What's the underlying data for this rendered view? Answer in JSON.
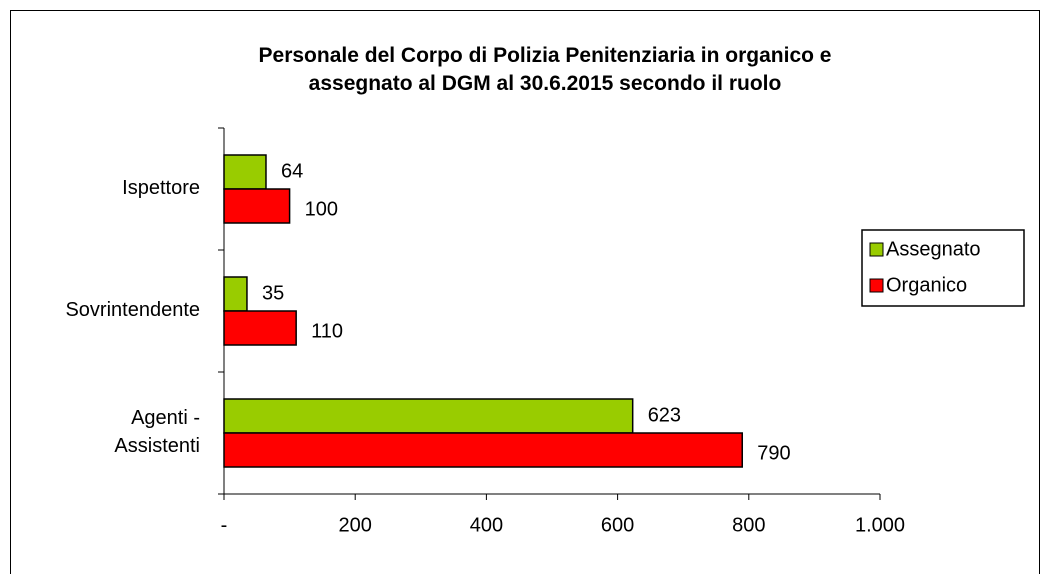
{
  "chart_data": {
    "type": "hbar",
    "title": "Personale del Corpo di Polizia Penitenziaria in organico e assegnato al DGM al 30.6.2015 secondo il ruolo",
    "categories": [
      "Ispettore",
      "Sovrintendente",
      "Agenti - Assistenti"
    ],
    "series": [
      {
        "name": "Assegnato",
        "color": "#99cc00",
        "values": [
          64,
          35,
          623
        ]
      },
      {
        "name": "Organico",
        "color": "#ff0000",
        "values": [
          100,
          110,
          790
        ]
      }
    ],
    "xlim": [
      0,
      1000
    ],
    "xticks": [
      {
        "value": 0,
        "label": "-"
      },
      200,
      400,
      600,
      800,
      {
        "value": 1000,
        "label": "1.000"
      }
    ],
    "legend": "right"
  }
}
